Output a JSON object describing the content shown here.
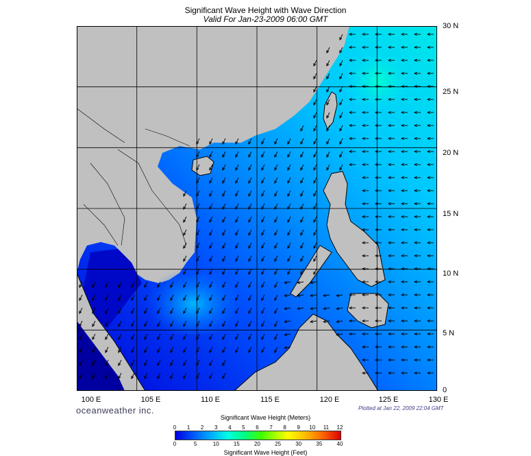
{
  "title": "Significant Wave Height with Wave Direction",
  "subtitle": "Valid For Jan-23-2009 06:00 GMT",
  "lat_labels": [
    "30 N",
    "25 N",
    "20 N",
    "15 N",
    "10 N",
    "5 N",
    "0"
  ],
  "lon_labels": [
    "100 E",
    "105 E",
    "110 E",
    "115 E",
    "120 E",
    "125 E",
    "130 E"
  ],
  "brand": "oceanweather inc.",
  "plotted": "Plotted at Jan 22, 2009 22:04 GMT",
  "colorbar": {
    "meters_title": "Significant Wave Height (Meters)",
    "feet_title": "Significant Wave Height (Feet)",
    "meters_ticks": [
      "0",
      "1",
      "2",
      "3",
      "4",
      "5",
      "6",
      "7",
      "8",
      "9",
      "10",
      "11",
      "12"
    ],
    "feet_ticks": [
      "0",
      "5",
      "10",
      "15",
      "20",
      "25",
      "30",
      "35",
      "40"
    ]
  },
  "colors": {
    "land": "#c0c0c0",
    "deep_blue": "#0000e0",
    "mid_blue": "#0060ff",
    "cyan": "#00e0ff",
    "arrow": "#000000"
  }
}
